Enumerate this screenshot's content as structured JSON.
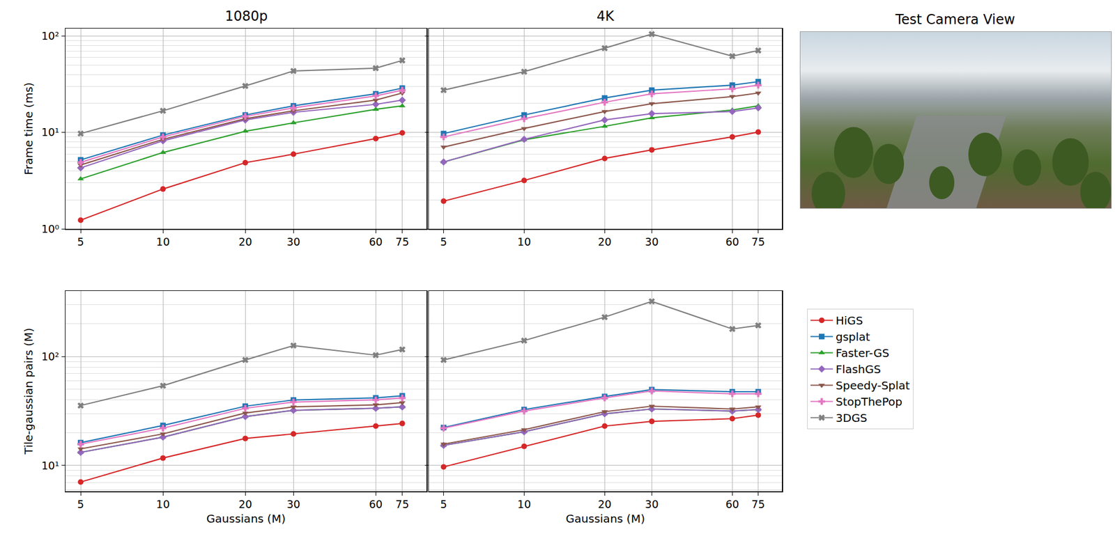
{
  "chart_data": [
    {
      "type": "line",
      "title": "1080p",
      "y_label": "Frame time (ms)",
      "log": true,
      "grid": true,
      "tick_labels": true,
      "x": [
        5,
        10,
        20,
        30,
        60,
        75
      ],
      "xlim": [
        4.4,
        92
      ],
      "xticks": [
        5,
        10,
        20,
        30,
        60,
        75
      ],
      "ylim": [
        1,
        120
      ],
      "yticks": [
        {
          "value": 1,
          "label": "10⁰"
        },
        {
          "value": 10,
          "label": "10¹"
        },
        {
          "value": 100,
          "label": "10²"
        }
      ],
      "series": [
        {
          "name": "HiGS",
          "color": "#d62728",
          "marker": "circle",
          "values": [
            1.23,
            2.59,
            4.86,
            5.96,
            8.65,
            9.9
          ]
        },
        {
          "name": "gsplat",
          "color": "#1f77b4",
          "marker": "square",
          "values": [
            5.2,
            9.4,
            15.2,
            18.9,
            25.2,
            28.9
          ]
        },
        {
          "name": "Faster-GS",
          "color": "#2ca02c",
          "marker": "triangle-up",
          "values": [
            3.3,
            6.2,
            10.3,
            12.6,
            17.4,
            18.9
          ]
        },
        {
          "name": "FlashGS",
          "color": "#9467bd",
          "marker": "diamond",
          "values": [
            4.3,
            8.2,
            13.5,
            16.2,
            19.6,
            21.7
          ]
        },
        {
          "name": "Speedy-Splat",
          "color": "#8c564b",
          "marker": "triangle-down",
          "values": [
            4.6,
            8.5,
            13.9,
            16.8,
            21.7,
            25.7
          ]
        },
        {
          "name": "StopThePop",
          "color": "#e377c2",
          "marker": "cross",
          "values": [
            4.9,
            9.0,
            14.7,
            18.0,
            24.0,
            27.5
          ]
        },
        {
          "name": "3DGS",
          "color": "#7f7f7f",
          "marker": "x",
          "values": [
            9.75,
            16.8,
            30.4,
            43.5,
            46.5,
            56
          ]
        }
      ]
    },
    {
      "type": "line",
      "title": "4K",
      "log": true,
      "grid": true,
      "tick_labels": "x",
      "x": [
        5,
        10,
        20,
        30,
        60,
        75
      ],
      "xlim": [
        4.4,
        92
      ],
      "xticks": [
        5,
        10,
        20,
        30,
        60,
        75
      ],
      "ylim": [
        1,
        120
      ],
      "yticks": [
        {
          "value": 1,
          "label": "10⁰"
        },
        {
          "value": 10,
          "label": "10¹"
        },
        {
          "value": 100,
          "label": "10²"
        }
      ],
      "series": [
        {
          "name": "HiGS",
          "color": "#d62728",
          "marker": "circle",
          "values": [
            1.94,
            3.18,
            5.38,
            6.6,
            9.0,
            10.1
          ]
        },
        {
          "name": "gsplat",
          "color": "#1f77b4",
          "marker": "square",
          "values": [
            9.75,
            15.2,
            22.8,
            27.5,
            31,
            33.7
          ]
        },
        {
          "name": "Faster-GS",
          "color": "#2ca02c",
          "marker": "triangle-up",
          "values": [
            4.94,
            8.4,
            11.6,
            14.2,
            17.1,
            18.9
          ]
        },
        {
          "name": "FlashGS",
          "color": "#9467bd",
          "marker": "diamond",
          "values": [
            4.94,
            8.5,
            13.5,
            15.7,
            16.5,
            18.0
          ]
        },
        {
          "name": "Speedy-Splat",
          "color": "#8c564b",
          "marker": "triangle-down",
          "values": [
            7.06,
            11.0,
            16.5,
            19.9,
            23.6,
            25.7
          ]
        },
        {
          "name": "StopThePop",
          "color": "#e377c2",
          "marker": "cross",
          "values": [
            9.0,
            13.9,
            20.6,
            25.2,
            28.4,
            31
          ]
        },
        {
          "name": "3DGS",
          "color": "#7f7f7f",
          "marker": "x",
          "values": [
            27.5,
            42.8,
            75,
            105,
            62,
            71
          ]
        }
      ]
    },
    {
      "type": "line",
      "x_label": "Gaussians (M)",
      "y_label": "Tile-gaussian pairs (M)",
      "log": true,
      "grid": true,
      "tick_labels": true,
      "x": [
        5,
        10,
        20,
        30,
        60,
        75
      ],
      "xlim": [
        4.4,
        92
      ],
      "xticks": [
        5,
        10,
        20,
        30,
        60,
        75
      ],
      "ylim": [
        5.8,
        400
      ],
      "yticks": [
        {
          "value": 10,
          "label": "10¹"
        },
        {
          "value": 100,
          "label": "10²"
        }
      ],
      "series": [
        {
          "name": "HiGS",
          "color": "#d62728",
          "marker": "circle",
          "values": [
            7.05,
            11.7,
            17.7,
            19.5,
            23,
            24.3
          ]
        },
        {
          "name": "gsplat",
          "color": "#1f77b4",
          "marker": "square",
          "values": [
            16.2,
            23.3,
            35,
            39.9,
            41.7,
            43.6
          ]
        },
        {
          "name": "Faster-GS",
          "color": "#2ca02c",
          "marker": "triangle-up",
          "values": [
            13.2,
            18.2,
            28.1,
            32.1,
            33.5,
            34.5
          ]
        },
        {
          "name": "FlashGS",
          "color": "#9467bd",
          "marker": "diamond",
          "values": [
            13.2,
            18.2,
            28.1,
            32.1,
            33.5,
            34.5
          ]
        },
        {
          "name": "Speedy-Splat",
          "color": "#8c564b",
          "marker": "triangle-down",
          "values": [
            14.2,
            19.5,
            30.3,
            34.5,
            36,
            37.7
          ]
        },
        {
          "name": "StopThePop",
          "color": "#e377c2",
          "marker": "cross",
          "values": [
            15.7,
            22,
            33.5,
            38.2,
            40,
            41.7
          ]
        },
        {
          "name": "3DGS",
          "color": "#7f7f7f",
          "marker": "x",
          "values": [
            35.5,
            54,
            93,
            126,
            103,
            116
          ]
        }
      ]
    },
    {
      "type": "line",
      "x_label": "Gaussians (M)",
      "log": true,
      "grid": true,
      "tick_labels": "x",
      "legend": "right",
      "x": [
        5,
        10,
        20,
        30,
        60,
        75
      ],
      "xlim": [
        4.4,
        92
      ],
      "xticks": [
        5,
        10,
        20,
        30,
        60,
        75
      ],
      "ylim": [
        5.8,
        400
      ],
      "yticks": [
        {
          "value": 10,
          "label": "10¹"
        },
        {
          "value": 100,
          "label": "10²"
        }
      ],
      "series": [
        {
          "name": "HiGS",
          "color": "#d62728",
          "marker": "circle",
          "values": [
            9.7,
            15,
            23,
            25.4,
            26.9,
            29
          ]
        },
        {
          "name": "gsplat",
          "color": "#1f77b4",
          "marker": "square",
          "values": [
            22.3,
            32.6,
            43,
            49.7,
            47.5,
            47.5
          ]
        },
        {
          "name": "Faster-GS",
          "color": "#2ca02c",
          "marker": "triangle-up",
          "values": [
            15.3,
            20.4,
            29.8,
            33,
            31.6,
            32.6
          ]
        },
        {
          "name": "FlashGS",
          "color": "#9467bd",
          "marker": "diamond",
          "values": [
            15.3,
            20.4,
            29.8,
            33,
            31.6,
            32.6
          ]
        },
        {
          "name": "Speedy-Splat",
          "color": "#8c564b",
          "marker": "triangle-down",
          "values": [
            15.7,
            21.3,
            31.2,
            35,
            33,
            34.5
          ]
        },
        {
          "name": "StopThePop",
          "color": "#e377c2",
          "marker": "cross",
          "values": [
            22,
            31.6,
            41.7,
            48.3,
            45.5,
            45.5
          ]
        },
        {
          "name": "3DGS",
          "color": "#7f7f7f",
          "marker": "x",
          "values": [
            93,
            140,
            230,
            321,
            179,
            193
          ]
        }
      ]
    }
  ],
  "image_panel": {
    "title": "Test Camera View"
  }
}
